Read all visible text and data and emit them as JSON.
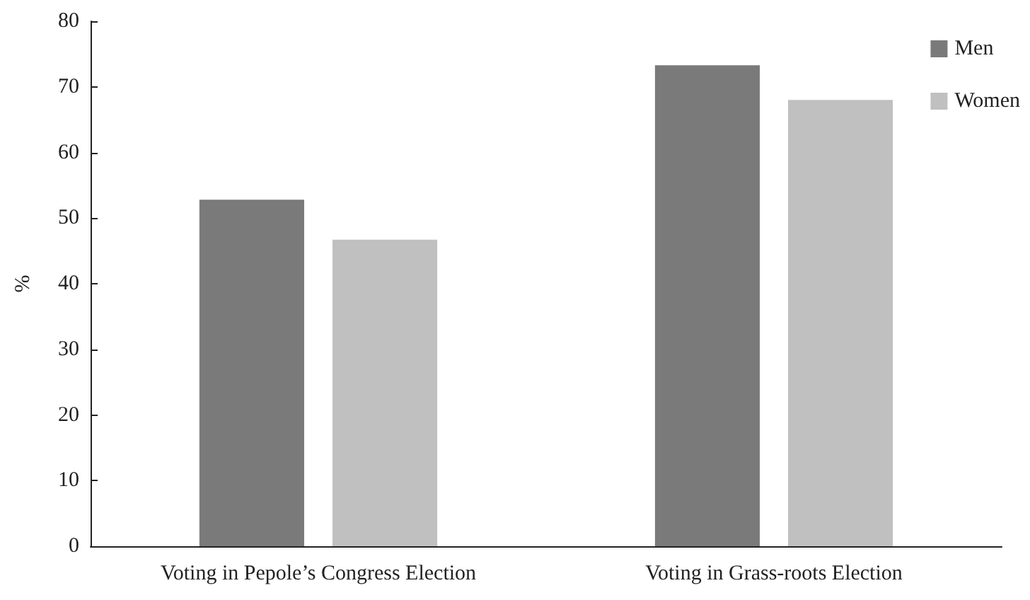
{
  "chart_data": {
    "type": "bar",
    "ylabel": "%",
    "categories": [
      "Voting in Pepole’s Congress Election",
      "Voting in Grass-roots Election"
    ],
    "series": [
      {
        "name": "Men",
        "color": "#7a7a7a",
        "values": [
          52.8,
          73.3
        ]
      },
      {
        "name": "Women",
        "color": "#c0c0c0",
        "values": [
          46.7,
          68.0
        ]
      }
    ],
    "ylim": [
      0,
      80
    ],
    "yticks": [
      0,
      10,
      20,
      30,
      40,
      50,
      60,
      70,
      80
    ],
    "grid": false,
    "legend": "top right"
  }
}
